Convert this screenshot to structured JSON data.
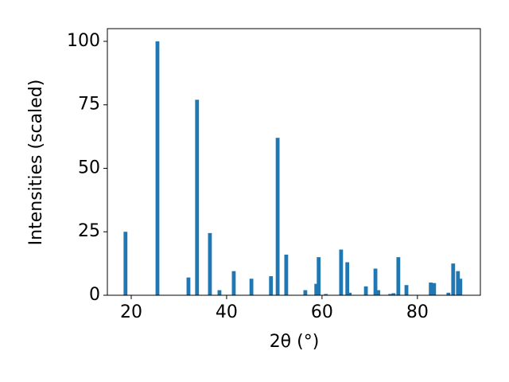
{
  "chart_data": {
    "type": "bar",
    "xlabel": "2θ (°)",
    "ylabel": "Intensities (scaled)",
    "x": [
      18.8,
      25.5,
      32.0,
      33.8,
      36.5,
      38.5,
      41.5,
      45.2,
      49.3,
      50.7,
      52.5,
      56.5,
      58.8,
      59.3,
      60.8,
      64.0,
      65.3,
      65.8,
      69.2,
      71.2,
      71.8,
      74.3,
      75.0,
      76.0,
      77.7,
      82.8,
      83.5,
      86.5,
      87.5,
      88.5,
      89.0
    ],
    "values": [
      25,
      100,
      7,
      77,
      24.5,
      2,
      9.5,
      6.5,
      7.5,
      62,
      16,
      2,
      4.5,
      15,
      0.5,
      18,
      13,
      1,
      3.5,
      10.5,
      2,
      0.5,
      0.8,
      15,
      4,
      5,
      4.8,
      1,
      12.5,
      9.5,
      6.5
    ],
    "color": "#1f77b4",
    "bar_width": 0.8,
    "xlim": [
      15,
      93.2
    ],
    "ylim": [
      0,
      105
    ],
    "xticks": [
      20,
      40,
      60,
      80
    ],
    "yticks": [
      0,
      25,
      50,
      75,
      100
    ],
    "grid": false
  }
}
